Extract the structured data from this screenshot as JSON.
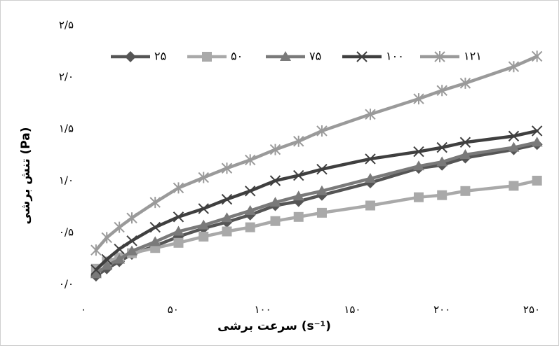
{
  "chart_data": {
    "type": "line",
    "title": "",
    "xlabel": "سرعت برشی (s⁻¹)",
    "ylabel": "تنش برشی (Pa)",
    "xlim": [
      0,
      250
    ],
    "ylim": [
      0,
      2.5
    ],
    "x_ticks": [
      0,
      50,
      100,
      150,
      200,
      250
    ],
    "x_tick_labels": [
      "۰",
      "۵۰",
      "۱۰۰",
      "۱۵۰",
      "۲۰۰",
      "۲۵۰"
    ],
    "y_ticks": [
      0,
      0.5,
      1.0,
      1.5,
      2.0,
      2.5
    ],
    "y_tick_labels": [
      "۰/۰",
      "۰/۵",
      "۱/۰",
      "۱/۵",
      "۲/۰",
      "۲/۵"
    ],
    "grid": false,
    "legend_position": "top",
    "x": [
      7,
      13,
      20,
      27,
      40,
      53,
      67,
      80,
      93,
      107,
      120,
      133,
      160,
      187,
      200,
      213,
      240,
      253
    ],
    "series": [
      {
        "name": "۲۵",
        "color": "#555555",
        "marker": "diamond",
        "values": [
          0.08,
          0.15,
          0.22,
          0.29,
          0.37,
          0.46,
          0.54,
          0.6,
          0.67,
          0.76,
          0.8,
          0.86,
          0.98,
          1.12,
          1.15,
          1.22,
          1.3,
          1.35
        ]
      },
      {
        "name": "۵۰",
        "color": "#a9a9a9",
        "marker": "square",
        "values": [
          0.15,
          0.22,
          0.26,
          0.3,
          0.35,
          0.4,
          0.46,
          0.51,
          0.55,
          0.61,
          0.65,
          0.69,
          0.76,
          0.84,
          0.86,
          0.9,
          0.95,
          1.0
        ]
      },
      {
        "name": "۷۵",
        "color": "#7a7a7a",
        "marker": "triangle",
        "values": [
          0.1,
          0.18,
          0.24,
          0.32,
          0.41,
          0.51,
          0.57,
          0.64,
          0.71,
          0.79,
          0.85,
          0.9,
          1.02,
          1.14,
          1.18,
          1.25,
          1.32,
          1.37
        ]
      },
      {
        "name": "۱۰۰",
        "color": "#3f3f3f",
        "marker": "x",
        "values": [
          0.14,
          0.24,
          0.34,
          0.42,
          0.55,
          0.65,
          0.73,
          0.82,
          0.9,
          1.0,
          1.05,
          1.11,
          1.21,
          1.28,
          1.32,
          1.37,
          1.43,
          1.48
        ]
      },
      {
        "name": "۱۲۱",
        "color": "#9a9a9a",
        "marker": "asterisk",
        "values": [
          0.33,
          0.45,
          0.55,
          0.64,
          0.79,
          0.93,
          1.03,
          1.12,
          1.2,
          1.3,
          1.38,
          1.48,
          1.64,
          1.79,
          1.87,
          1.94,
          2.1,
          2.2
        ]
      }
    ]
  }
}
